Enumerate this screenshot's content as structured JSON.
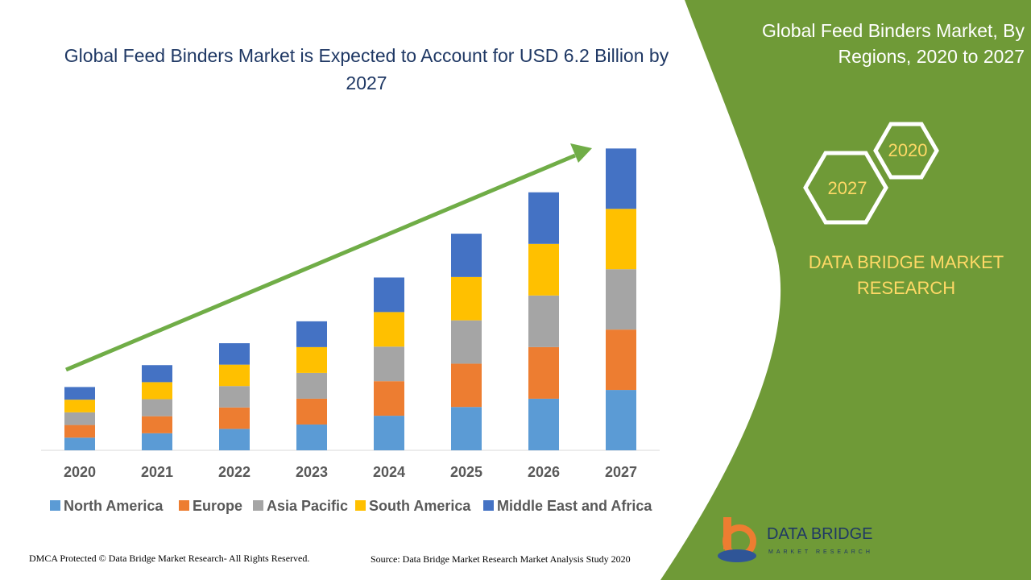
{
  "chart_data": {
    "type": "stacked_bar",
    "title": "Global Feed Binders Market is Expected to Account for USD 6.2 Billion by 2027",
    "categories": [
      "2020",
      "2021",
      "2022",
      "2023",
      "2024",
      "2025",
      "2026",
      "2027"
    ],
    "series": [
      {
        "name": "North America",
        "color": "#5b9bd5",
        "values": [
          0.26,
          0.35,
          0.44,
          0.53,
          0.71,
          0.89,
          1.06,
          1.24
        ]
      },
      {
        "name": "Europe",
        "color": "#ed7d31",
        "values": [
          0.26,
          0.35,
          0.44,
          0.53,
          0.71,
          0.89,
          1.06,
          1.24
        ]
      },
      {
        "name": "Asia Pacific",
        "color": "#a5a5a5",
        "values": [
          0.26,
          0.35,
          0.44,
          0.53,
          0.71,
          0.89,
          1.06,
          1.24
        ]
      },
      {
        "name": "South America",
        "color": "#ffc000",
        "values": [
          0.26,
          0.35,
          0.44,
          0.53,
          0.71,
          0.89,
          1.06,
          1.24
        ]
      },
      {
        "name": "Middle East and Africa",
        "color": "#4472c4",
        "values": [
          0.26,
          0.35,
          0.44,
          0.53,
          0.71,
          0.89,
          1.06,
          1.24
        ]
      }
    ],
    "ylim": [
      0,
      7
    ],
    "legend": "bottom"
  },
  "panel": {
    "title": "Global Feed Binders Market, By Regions, 2020 to 2027",
    "hex_front": "2027",
    "hex_back": "2020",
    "brand": "DATA BRIDGE MARKET RESEARCH"
  },
  "logo": {
    "name": "DATA BRIDGE",
    "tagline": "MARKET RESEARCH"
  },
  "footer": {
    "rights": "DMCA Protected © Data Bridge Market Research- All Rights Reserved.",
    "source": "Source: Data Bridge Market Research Market Analysis Study 2020"
  }
}
